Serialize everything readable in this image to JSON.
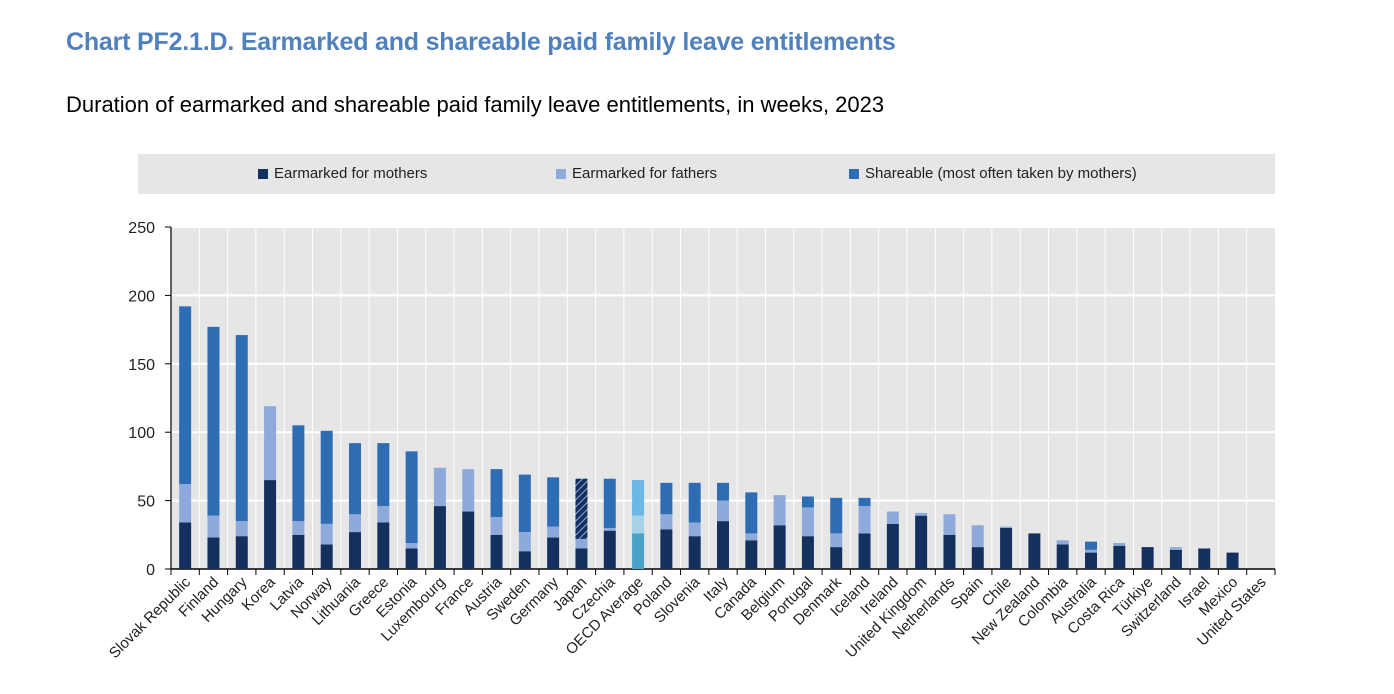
{
  "title": "Chart PF2.1.D. Earmarked and shareable paid family leave entitlements",
  "subtitle": "Duration of earmarked and shareable paid family leave entitlements, in weeks, 2023",
  "colors": {
    "mothers": "#14305e",
    "fathers": "#8eaadb",
    "shareable": "#2e6db4",
    "oecd_mothers": "#4aa3c7",
    "oecd_fathers": "#a6d3e6",
    "oecd_shareable": "#6ab7e8",
    "plot_bg": "#e6e6e6",
    "grid": "#ffffff"
  },
  "legend": {
    "mothers": "Earmarked for mothers",
    "fathers": "Earmarked for fathers",
    "shareable": "Shareable (most often taken by mothers)"
  },
  "chart_data": {
    "type": "bar",
    "stacked": true,
    "ylim": [
      0,
      250
    ],
    "yticks": [
      0,
      50,
      100,
      150,
      200,
      250
    ],
    "grid": true,
    "legend_position": "top",
    "categories": [
      "Slovak Republic",
      "Finland",
      "Hungary",
      "Korea",
      "Latvia",
      "Norway",
      "Lithuania",
      "Greece",
      "Estonia",
      "Luxembourg",
      "France",
      "Austria",
      "Sweden",
      "Germany",
      "Japan",
      "Czechia",
      "OECD Average",
      "Poland",
      "Slovenia",
      "Italy",
      "Canada",
      "Belgium",
      "Portugal",
      "Denmark",
      "Iceland",
      "Ireland",
      "United Kingdom",
      "Netherlands",
      "Spain",
      "Chile",
      "New Zealand",
      "Colombia",
      "Australia",
      "Costa Rica",
      "Türkiye",
      "Switzerland",
      "Israel",
      "Mexico",
      "United States"
    ],
    "highlight": {
      "OECD Average": "average",
      "Japan": "hatched"
    },
    "series": [
      {
        "name": "Earmarked for mothers",
        "values": [
          34,
          23,
          24,
          65,
          25,
          18,
          27,
          34,
          15,
          46,
          42,
          25,
          13,
          23,
          15,
          28,
          26,
          29,
          24,
          35,
          21,
          32,
          24,
          16,
          26,
          33,
          39,
          25,
          16,
          30,
          26,
          18,
          12,
          17,
          16,
          14,
          15,
          12,
          0
        ]
      },
      {
        "name": "Earmarked for fathers",
        "values": [
          28,
          16,
          11,
          54,
          10,
          15,
          13,
          12,
          4,
          28,
          31,
          13,
          14,
          8,
          7,
          2,
          13,
          11,
          10,
          15,
          5,
          22,
          21,
          10,
          20,
          9,
          2,
          15,
          16,
          1,
          0,
          3,
          2,
          2,
          0,
          2,
          0,
          0,
          0
        ]
      },
      {
        "name": "Shareable (most often taken by mothers)",
        "values": [
          130,
          138,
          136,
          0,
          70,
          68,
          52,
          46,
          67,
          0,
          0,
          35,
          42,
          36,
          44,
          36,
          26,
          23,
          29,
          13,
          30,
          0,
          8,
          26,
          6,
          0,
          0,
          0,
          0,
          0,
          0,
          0,
          6,
          0,
          0,
          0,
          0,
          0,
          0
        ]
      }
    ]
  }
}
